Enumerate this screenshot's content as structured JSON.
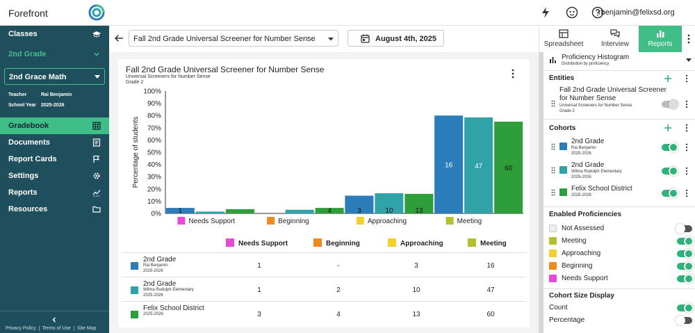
{
  "app": {
    "name": "Forefront",
    "user": "rbenjamin@felixsd.org"
  },
  "sidebar": {
    "classes_label": "Classes",
    "grade_label": "2nd Grade",
    "class_select": "2nd Grace Math",
    "teacher_label": "Teacher",
    "teacher_value": "Rai Benjamin",
    "year_label": "School Year",
    "year_value": "2025-2026",
    "nav": [
      {
        "label": "Gradebook",
        "icon": "grid-icon"
      },
      {
        "label": "Documents",
        "icon": "document-icon"
      },
      {
        "label": "Report Cards",
        "icon": "flag-icon"
      },
      {
        "label": "Settings",
        "icon": "gear-icon"
      },
      {
        "label": "Reports",
        "icon": "trend-icon"
      },
      {
        "label": "Resources",
        "icon": "folder-icon"
      }
    ],
    "footer_links": [
      "Privacy Policy",
      "Terms of Use",
      "Site Map"
    ]
  },
  "toolbar": {
    "assessment": "Fall 2nd Grade Universal Screener for Number Sense",
    "date": "August 4th, 2025"
  },
  "card": {
    "title": "Fall 2nd Grade Universal Screener for Number Sense",
    "subtitle": "Universal Screeners for Number Sense",
    "grade": "Grade 2"
  },
  "chart_data": {
    "type": "bar",
    "ylabel": "Percentage of students",
    "ylim": [
      0,
      100
    ],
    "yticks": [
      "0%",
      "10%",
      "20%",
      "30%",
      "40%",
      "50%",
      "60%",
      "70%",
      "80%",
      "90%",
      "100%"
    ],
    "categories": [
      "Needs Support",
      "Beginning",
      "Approaching",
      "Meeting"
    ],
    "category_colors": [
      "#e84ad8",
      "#f08a1c",
      "#f2d22a",
      "#b4c02e"
    ],
    "series": [
      {
        "name": "2nd Grade",
        "color": "#2a7db8",
        "values": [
          4.5,
          0,
          14.5,
          80
        ],
        "labels": [
          "1",
          "",
          "3",
          "16"
        ]
      },
      {
        "name": "2nd Grade",
        "color": "#2fa3a8",
        "values": [
          1.5,
          3,
          16.5,
          78.5
        ],
        "labels": [
          "",
          "",
          "10",
          "47"
        ]
      },
      {
        "name": "Felix School District",
        "color": "#2e9e3a",
        "values": [
          3.5,
          4.5,
          16,
          75
        ],
        "labels": [
          "",
          "4",
          "13",
          "60"
        ]
      }
    ]
  },
  "table": {
    "headers": [
      "Needs Support",
      "Beginning",
      "Approaching",
      "Meeting"
    ],
    "rows": [
      {
        "name": "2nd Grade",
        "sub1": "Rai Benjamin",
        "sub2": "2025-2026",
        "color": "#2a7db8",
        "values": [
          "1",
          "-",
          "3",
          "16"
        ]
      },
      {
        "name": "2nd Grade",
        "sub1": "Wilma Rudolph Elementary",
        "sub2": "2025-2026",
        "color": "#2fa3a8",
        "values": [
          "1",
          "2",
          "10",
          "47"
        ]
      },
      {
        "name": "Felix School District",
        "sub1": "2025-2026",
        "sub2": "",
        "color": "#2e9e3a",
        "values": [
          "3",
          "4",
          "13",
          "60"
        ]
      }
    ]
  },
  "panel": {
    "tabs": [
      "Spreadsheet",
      "Interview",
      "Reports"
    ],
    "report_type": "Proficiency Histogram",
    "report_desc": "Distribution by proficiency",
    "entities_title": "Entities",
    "entity": {
      "name1": "Fall 2nd Grade Universal Screener",
      "name2": "for Number Sense",
      "sub1": "Universal Screeners for Number Sense",
      "sub2": "Grade 2"
    },
    "cohorts_title": "Cohorts",
    "cohorts": [
      {
        "name": "2nd Grade",
        "sub1": "Rai Benjamin",
        "sub2": "2025-2026",
        "color": "#2a7db8"
      },
      {
        "name": "2nd Grade",
        "sub1": "Wilma Rudolph Elementary",
        "sub2": "2025-2026",
        "color": "#2fa3a8"
      },
      {
        "name": "Felix School District",
        "sub1": "2025-2026",
        "sub2": "",
        "color": "#2e9e3a"
      }
    ],
    "prof_title": "Enabled Proficiencies",
    "proficiencies": [
      {
        "label": "Not Assessed",
        "color": "#eeeeee",
        "on": false
      },
      {
        "label": "Meeting",
        "color": "#b4c02e",
        "on": true
      },
      {
        "label": "Approaching",
        "color": "#f2d22a",
        "on": true
      },
      {
        "label": "Beginning",
        "color": "#f08a1c",
        "on": true
      },
      {
        "label": "Needs Support",
        "color": "#e84ad8",
        "on": true
      }
    ],
    "size_title": "Cohort Size Display",
    "size_count": "Count",
    "size_pct": "Percentage"
  }
}
